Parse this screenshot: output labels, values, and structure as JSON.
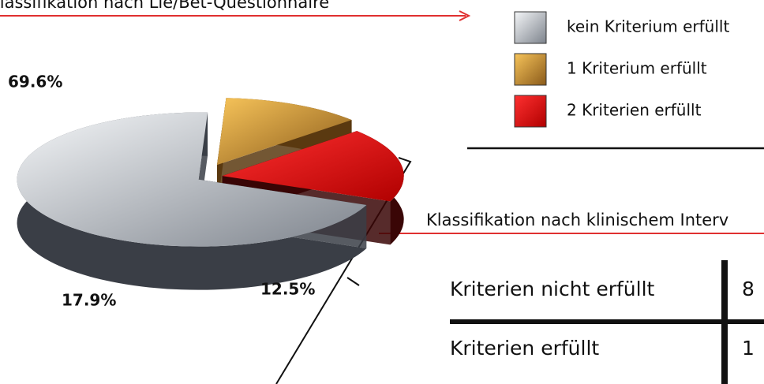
{
  "chart_data": {
    "type": "pie",
    "title": "Klassifikation nach Lie/Bet-Questionnaire",
    "categories": [
      "kein Kriterium erfüllt",
      "1 Kriterium erfüllt",
      "2 Kriterien erfüllt"
    ],
    "values": [
      69.6,
      12.5,
      17.9
    ],
    "value_labels": [
      "69.6%",
      "12.5%",
      "17.9%"
    ],
    "colors": [
      "#b9bec6",
      "#f0a830",
      "#ee1c1c"
    ]
  },
  "table": {
    "title": "Klassifikation nach klinischem Interv",
    "rows": [
      [
        "Kriterien nicht erfüllt",
        "8"
      ],
      [
        "Kriterien erfüllt",
        "1"
      ]
    ]
  }
}
